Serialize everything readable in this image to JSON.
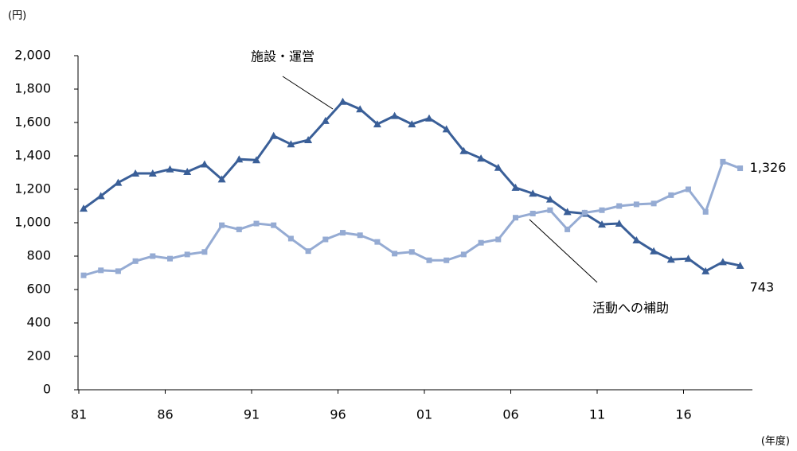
{
  "chart_data": {
    "type": "line",
    "y_unit": "(円)",
    "x_unit": "(年度)",
    "categories": [
      "81",
      null,
      null,
      null,
      null,
      "86",
      null,
      null,
      null,
      null,
      "91",
      null,
      null,
      null,
      null,
      "96",
      null,
      null,
      null,
      null,
      "01",
      null,
      null,
      null,
      null,
      "06",
      null,
      null,
      null,
      null,
      "11",
      null,
      null,
      null,
      null,
      "16",
      null,
      null,
      null
    ],
    "series": [
      {
        "name": "施設・運営",
        "color": "#3a5f98",
        "marker": "triangle",
        "values": [
          1085,
          1160,
          1240,
          1295,
          1295,
          1320,
          1305,
          1350,
          1260,
          1380,
          1375,
          1520,
          1470,
          1495,
          1610,
          1725,
          1680,
          1590,
          1640,
          1590,
          1625,
          1560,
          1430,
          1385,
          1330,
          1210,
          1175,
          1140,
          1065,
          1055,
          990,
          995,
          895,
          830,
          780,
          785,
          710,
          765,
          743
        ]
      },
      {
        "name": "活動への補助",
        "color": "#95abd3",
        "marker": "square",
        "values": [
          685,
          715,
          710,
          770,
          800,
          785,
          810,
          825,
          985,
          960,
          995,
          985,
          905,
          830,
          900,
          940,
          925,
          885,
          815,
          825,
          775,
          775,
          810,
          880,
          900,
          1030,
          1055,
          1075,
          960,
          1060,
          1075,
          1100,
          1110,
          1115,
          1165,
          1200,
          1065,
          1365,
          1326
        ],
        "value_labels": [
          null,
          null,
          null,
          null,
          null,
          null,
          null,
          null,
          null,
          null,
          null,
          null,
          null,
          null,
          null,
          null,
          null,
          null,
          null,
          null,
          null,
          null,
          null,
          null,
          null,
          null,
          null,
          null,
          null,
          null,
          null,
          null,
          null,
          null,
          null,
          null,
          null,
          null,
          "1,326"
        ]
      }
    ],
    "ylim": [
      0,
      2000
    ],
    "yticks": [
      0,
      200,
      400,
      600,
      800,
      {
        "value": 1000,
        "label": "1,000"
      },
      {
        "value": 1200,
        "label": "1,200"
      },
      {
        "value": 1400,
        "label": "1,400"
      },
      {
        "value": 1600,
        "label": "1,600"
      },
      {
        "value": 1800,
        "label": "1,800"
      },
      {
        "value": 2000,
        "label": "2,000"
      }
    ],
    "grid": false
  }
}
